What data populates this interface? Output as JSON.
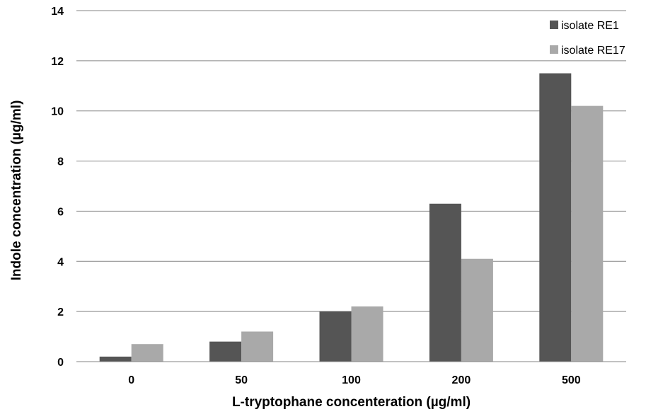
{
  "chart_data": {
    "type": "bar",
    "title": "",
    "xlabel": "L-tryptophane concenteration (µg/ml)",
    "ylabel": "Indole concentration (µg/ml)",
    "categories": [
      "0",
      "50",
      "100",
      "200",
      "500"
    ],
    "ylim": [
      0,
      14
    ],
    "yticks": [
      0,
      2,
      4,
      6,
      8,
      10,
      12,
      14
    ],
    "grid": true,
    "legend_position": "top-right",
    "series": [
      {
        "name": "isolate RE1",
        "values": [
          0.2,
          0.8,
          2.0,
          6.3,
          11.5
        ],
        "color": "#555555"
      },
      {
        "name": "isolate RE17",
        "values": [
          0.7,
          1.2,
          2.2,
          4.1,
          10.2
        ],
        "color": "#a9a9a9"
      }
    ]
  }
}
